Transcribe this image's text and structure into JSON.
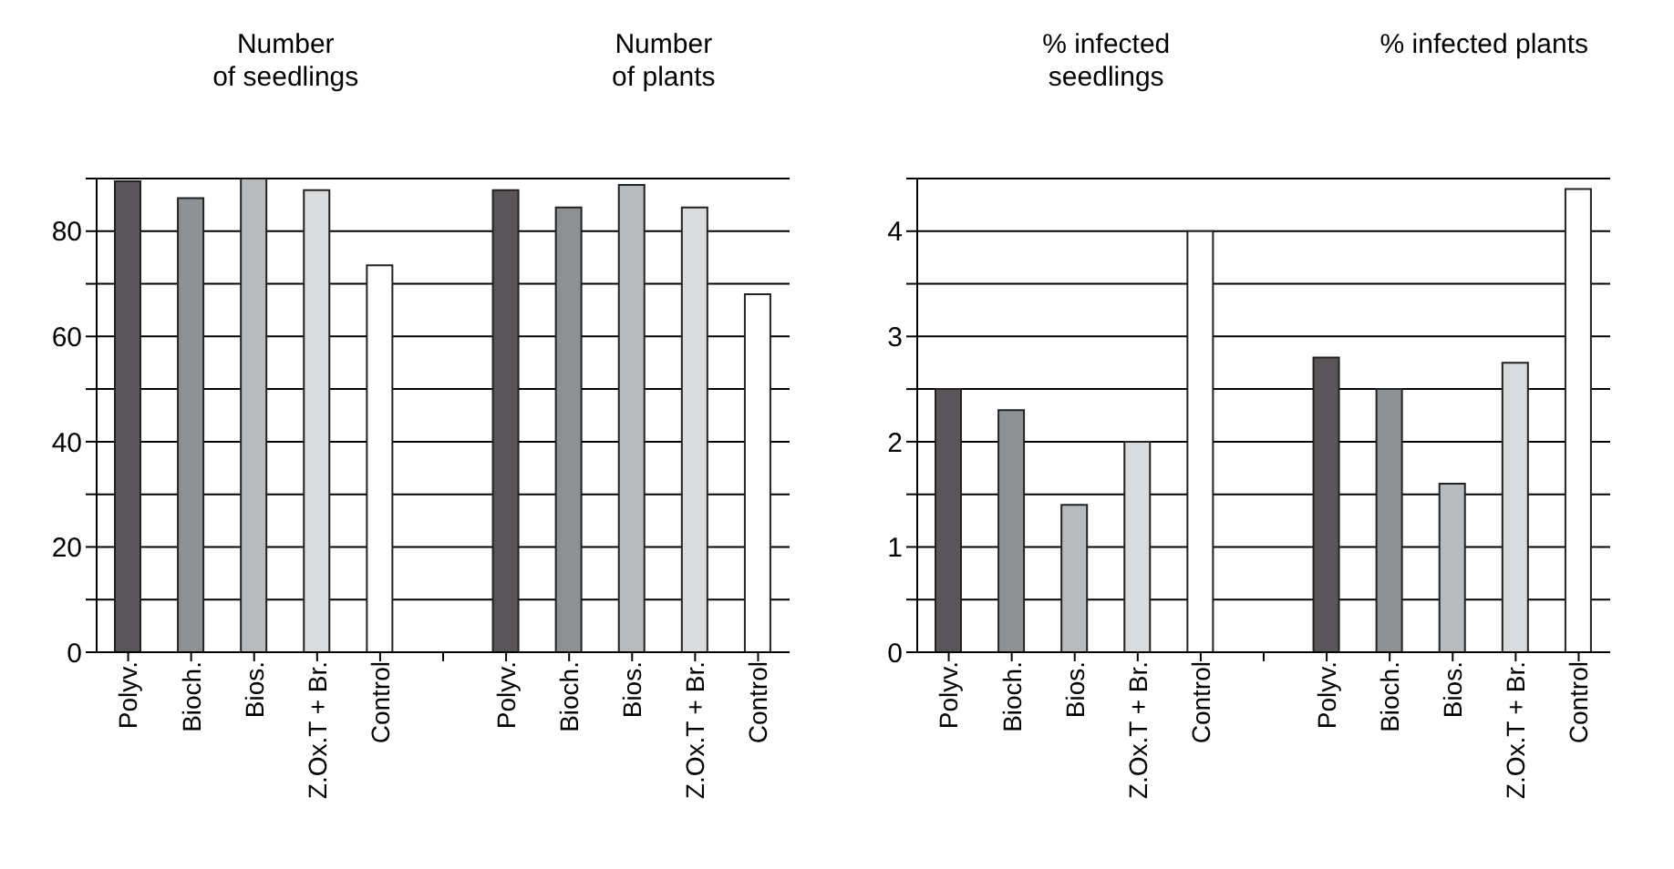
{
  "chart_data": [
    {
      "type": "bar",
      "annotations": [
        "Number\nof seedlings",
        "Number\nof plants"
      ],
      "categories": [
        "Polyv.",
        "Bioch.",
        "Bios.",
        "Z.Ox.T + Br.",
        "Control",
        null,
        "Polyv.",
        "Bioch.",
        "Bios.",
        "Z.Ox.T + Br.",
        "Control"
      ],
      "values": [
        89.5,
        86.3,
        90,
        87.8,
        73.5,
        null,
        87.8,
        84.5,
        88.8,
        84.5,
        68
      ],
      "colors": [
        "#5a5558",
        "#8e9193",
        "#b8bbbd",
        "#d9dbdc",
        "#ffffff",
        null,
        "#5a5558",
        "#8e9193",
        "#b8bbbd",
        "#d9dbdc",
        "#ffffff"
      ],
      "ylim": [
        0,
        90
      ],
      "yticks": [
        0,
        {
          "value": 10,
          "label": null
        },
        20,
        {
          "value": 30,
          "label": null
        },
        40,
        {
          "value": 50,
          "label": null
        },
        60,
        {
          "value": 70,
          "label": null
        },
        80,
        {
          "value": 90,
          "label": null
        }
      ],
      "grid": "y"
    },
    {
      "type": "bar",
      "annotations": [
        "% infected\nseedlings",
        "% infected plants"
      ],
      "categories": [
        "Polyv.",
        "Bioch.",
        "Bios.",
        "Z.Ox.T + Br.",
        "Control",
        null,
        "Polyv.",
        "Bioch.",
        "Bios.",
        "Z.Ox.T + Br.",
        "Control"
      ],
      "values": [
        2.5,
        2.3,
        1.4,
        2.0,
        4.0,
        null,
        2.8,
        2.5,
        1.6,
        2.75,
        4.4
      ],
      "colors": [
        "#5a5558",
        "#8e9193",
        "#b8bbbd",
        "#d9dbdc",
        "#ffffff",
        null,
        "#5a5558",
        "#8e9193",
        "#b8bbbd",
        "#d9dbdc",
        "#ffffff"
      ],
      "ylim": [
        0,
        4.5
      ],
      "yticks": [
        0,
        {
          "value": 0.5,
          "label": null
        },
        1,
        {
          "value": 1.5,
          "label": null
        },
        2,
        {
          "value": 2.5,
          "label": null
        },
        3,
        {
          "value": 3.5,
          "label": null
        },
        4,
        {
          "value": 4.5,
          "label": null
        }
      ],
      "grid": "y"
    }
  ]
}
